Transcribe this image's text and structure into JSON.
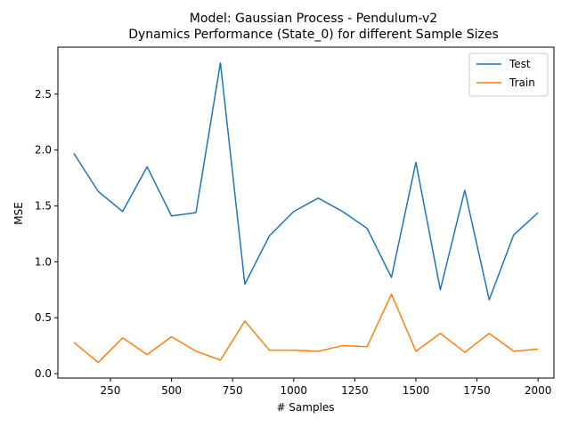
{
  "chart_data": {
    "type": "line",
    "title_line1": "Model: Gaussian Process - Pendulum-v2",
    "title_line2": "Dynamics Performance (State_0) for different Sample Sizes",
    "xlabel": "# Samples",
    "ylabel": "MSE",
    "xlim": [
      35,
      2065
    ],
    "ylim": [
      -0.04,
      2.92
    ],
    "x_ticks": [
      250,
      500,
      750,
      1000,
      1250,
      1500,
      1750,
      2000
    ],
    "y_ticks": [
      0.0,
      0.5,
      1.0,
      1.5,
      2.0,
      2.5
    ],
    "x": [
      100,
      200,
      300,
      400,
      500,
      600,
      700,
      800,
      900,
      1000,
      1100,
      1200,
      1300,
      1400,
      1500,
      1600,
      1700,
      1800,
      1900,
      2000
    ],
    "series": [
      {
        "name": "Test",
        "color": "#1f77b4",
        "values": [
          1.97,
          1.63,
          1.45,
          1.85,
          1.41,
          1.44,
          2.78,
          0.8,
          1.23,
          1.45,
          1.57,
          1.45,
          1.3,
          0.86,
          1.89,
          0.75,
          1.64,
          0.66,
          1.24,
          1.44
        ]
      },
      {
        "name": "Train",
        "color": "#ff7f0e",
        "values": [
          0.28,
          0.1,
          0.32,
          0.17,
          0.33,
          0.2,
          0.12,
          0.47,
          0.21,
          0.21,
          0.2,
          0.25,
          0.24,
          0.71,
          0.2,
          0.36,
          0.19,
          0.36,
          0.2,
          0.22
        ]
      }
    ],
    "legend_position": "top-right",
    "grid": false
  }
}
